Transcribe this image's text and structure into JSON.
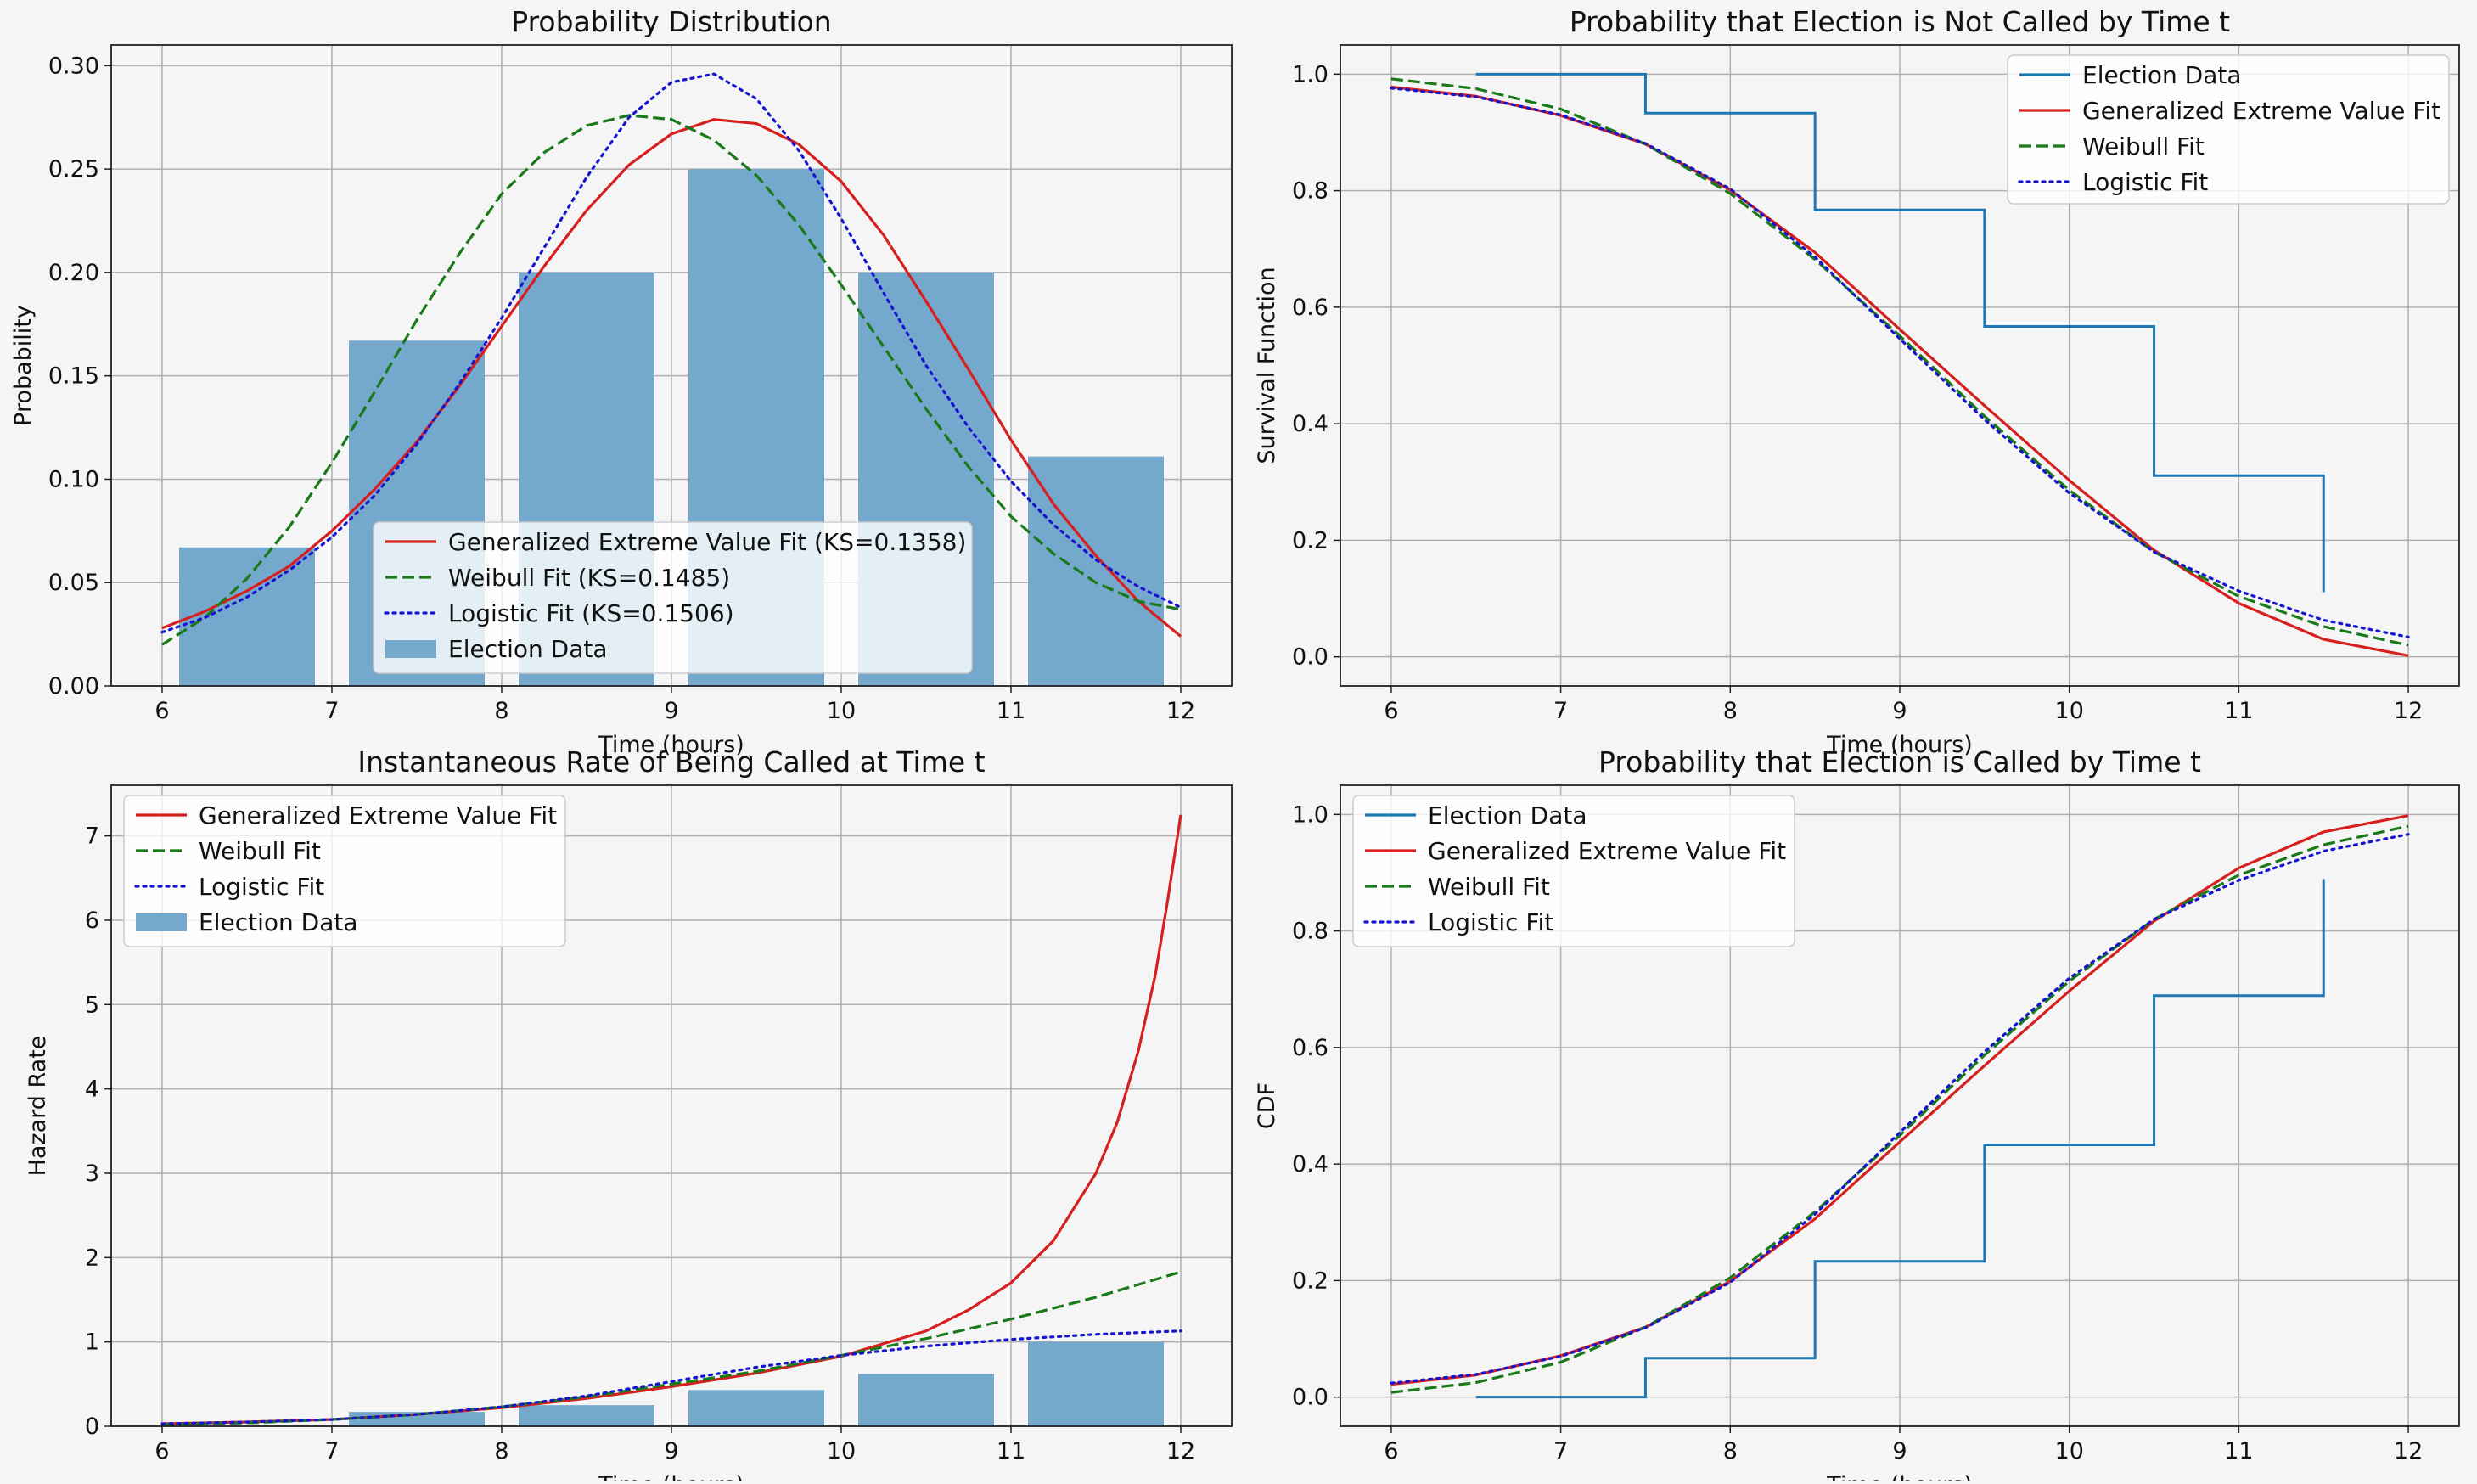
{
  "colors": {
    "figure_bg": "#f5f5f5",
    "axes_bg": "#f5f5f5",
    "grid": "#b0b0b0",
    "election_data": "#1f77b4",
    "election_bar": "#75a8cd",
    "gev": "#d62020",
    "weibull": "#1a7a1a",
    "logistic": "#1515d0"
  },
  "chart_data": [
    {
      "id": "pdf",
      "type": "bar",
      "title": "Probability Distribution",
      "xlabel": "Time (hours)",
      "ylabel": "Probability",
      "xlim": [
        5.7,
        12.3
      ],
      "ylim": [
        0,
        0.31
      ],
      "xticks": [
        6,
        7,
        8,
        9,
        10,
        11,
        12
      ],
      "yticks": [
        0.0,
        0.05,
        0.1,
        0.15,
        0.2,
        0.25,
        0.3
      ],
      "ytick_labels": [
        "0.00",
        "0.05",
        "0.10",
        "0.15",
        "0.20",
        "0.25",
        "0.30"
      ],
      "grid": true,
      "legend": "lower-center",
      "bars": {
        "name": "Election Data",
        "x": [
          6.5,
          7.5,
          8.5,
          9.5,
          10.5,
          11.5
        ],
        "width": 0.8,
        "values": [
          0.067,
          0.167,
          0.2,
          0.25,
          0.2,
          0.111
        ]
      },
      "series": [
        {
          "name": "Generalized Extreme Value Fit (KS=0.1358)",
          "style": "solid",
          "color_key": "gev",
          "x": [
            6,
            6.25,
            6.5,
            6.75,
            7,
            7.25,
            7.5,
            7.75,
            8,
            8.25,
            8.5,
            8.75,
            9,
            9.25,
            9.5,
            9.75,
            10,
            10.25,
            10.5,
            10.75,
            11,
            11.25,
            11.5,
            11.75,
            12
          ],
          "y": [
            0.028,
            0.036,
            0.046,
            0.058,
            0.075,
            0.095,
            0.118,
            0.145,
            0.174,
            0.203,
            0.23,
            0.252,
            0.267,
            0.274,
            0.272,
            0.262,
            0.244,
            0.218,
            0.186,
            0.153,
            0.119,
            0.088,
            0.063,
            0.041,
            0.024
          ]
        },
        {
          "name": "Weibull Fit (KS=0.1485)",
          "style": "dashed",
          "color_key": "weibull",
          "x": [
            6,
            6.25,
            6.5,
            6.75,
            7,
            7.25,
            7.5,
            7.75,
            8,
            8.25,
            8.5,
            8.75,
            9,
            9.25,
            9.5,
            9.75,
            10,
            10.25,
            10.5,
            10.75,
            11,
            11.25,
            11.5,
            11.75,
            12
          ],
          "y": [
            0.02,
            0.033,
            0.052,
            0.077,
            0.108,
            0.142,
            0.177,
            0.209,
            0.238,
            0.258,
            0.271,
            0.276,
            0.274,
            0.264,
            0.247,
            0.223,
            0.194,
            0.164,
            0.134,
            0.106,
            0.082,
            0.064,
            0.05,
            0.041,
            0.037
          ]
        },
        {
          "name": "Logistic Fit (KS=0.1506)",
          "style": "dotted",
          "color_key": "logistic",
          "x": [
            6,
            6.25,
            6.5,
            6.75,
            7,
            7.25,
            7.5,
            7.75,
            8,
            8.25,
            8.5,
            8.75,
            9,
            9.25,
            9.5,
            9.75,
            10,
            10.25,
            10.5,
            10.75,
            11,
            11.25,
            11.5,
            11.75,
            12
          ],
          "y": [
            0.026,
            0.033,
            0.043,
            0.056,
            0.072,
            0.092,
            0.117,
            0.146,
            0.178,
            0.212,
            0.246,
            0.275,
            0.292,
            0.296,
            0.284,
            0.259,
            0.226,
            0.19,
            0.155,
            0.125,
            0.099,
            0.078,
            0.061,
            0.048,
            0.038
          ]
        }
      ],
      "legend_order": [
        "series.0",
        "series.1",
        "series.2",
        "bars"
      ]
    },
    {
      "id": "survival",
      "type": "line",
      "title": "Probability that Election is Not Called by Time t",
      "xlabel": "Time (hours)",
      "ylabel": "Survival Function",
      "xlim": [
        5.7,
        12.3
      ],
      "ylim": [
        -0.05,
        1.05
      ],
      "xticks": [
        6,
        7,
        8,
        9,
        10,
        11,
        12
      ],
      "yticks": [
        0.0,
        0.2,
        0.4,
        0.6,
        0.8,
        1.0
      ],
      "ytick_labels": [
        "0.0",
        "0.2",
        "0.4",
        "0.6",
        "0.8",
        "1.0"
      ],
      "grid": true,
      "legend": "top-right",
      "step": {
        "name": "Election Data",
        "x": [
          6.5,
          7.5,
          7.5,
          8.5,
          8.5,
          9.5,
          9.5,
          10.5,
          10.5,
          11.5,
          11.5
        ],
        "y": [
          1.0,
          1.0,
          0.933,
          0.933,
          0.767,
          0.767,
          0.567,
          0.567,
          0.311,
          0.311,
          0.111
        ]
      },
      "series": [
        {
          "name": "Generalized Extreme Value Fit",
          "style": "solid",
          "color_key": "gev",
          "x": [
            6,
            6.5,
            7,
            7.5,
            8,
            8.5,
            9,
            9.5,
            10,
            10.5,
            11,
            11.5,
            12
          ],
          "y": [
            0.978,
            0.962,
            0.929,
            0.88,
            0.801,
            0.694,
            0.562,
            0.431,
            0.303,
            0.183,
            0.092,
            0.03,
            0.002
          ]
        },
        {
          "name": "Weibull Fit",
          "style": "dashed",
          "color_key": "weibull",
          "x": [
            6,
            6.5,
            7,
            7.5,
            8,
            8.5,
            9,
            9.5,
            10,
            10.5,
            11,
            11.5,
            12
          ],
          "y": [
            0.992,
            0.975,
            0.94,
            0.88,
            0.795,
            0.682,
            0.551,
            0.413,
            0.286,
            0.18,
            0.104,
            0.052,
            0.02
          ]
        },
        {
          "name": "Logistic Fit",
          "style": "dotted",
          "color_key": "logistic",
          "x": [
            6,
            6.5,
            7,
            7.5,
            8,
            8.5,
            9,
            9.5,
            10,
            10.5,
            11,
            11.5,
            12
          ],
          "y": [
            0.976,
            0.961,
            0.93,
            0.881,
            0.803,
            0.686,
            0.546,
            0.407,
            0.281,
            0.18,
            0.113,
            0.063,
            0.034
          ]
        }
      ],
      "legend_order": [
        "step",
        "series.0",
        "series.1",
        "series.2"
      ]
    },
    {
      "id": "hazard",
      "type": "bar",
      "title": "Instantaneous Rate of Being Called at Time t",
      "xlabel": "Time (hours)",
      "ylabel": "Hazard Rate",
      "xlim": [
        5.7,
        12.3
      ],
      "ylim": [
        0,
        7.6
      ],
      "xticks": [
        6,
        7,
        8,
        9,
        10,
        11,
        12
      ],
      "yticks": [
        0,
        1,
        2,
        3,
        4,
        5,
        6,
        7
      ],
      "ytick_labels": [
        "0",
        "1",
        "2",
        "3",
        "4",
        "5",
        "6",
        "7"
      ],
      "grid": true,
      "legend": "top-left",
      "bars": {
        "name": "Election Data",
        "x": [
          6.5,
          7.5,
          8.5,
          9.5,
          10.5,
          11.5
        ],
        "width": 0.8,
        "values": [
          0.0,
          0.17,
          0.25,
          0.43,
          0.62,
          1.0
        ]
      },
      "series": [
        {
          "name": "Generalized Extreme Value Fit",
          "style": "solid",
          "color_key": "gev",
          "x": [
            6,
            6.5,
            7,
            7.5,
            8,
            8.5,
            9,
            9.5,
            10,
            10.5,
            10.75,
            11,
            11.25,
            11.5,
            11.625,
            11.75,
            11.85,
            11.92,
            12
          ],
          "y": [
            0.03,
            0.05,
            0.08,
            0.14,
            0.22,
            0.33,
            0.47,
            0.63,
            0.83,
            1.13,
            1.38,
            1.7,
            2.2,
            3.0,
            3.6,
            4.45,
            5.35,
            6.2,
            7.25
          ]
        },
        {
          "name": "Weibull Fit",
          "style": "dashed",
          "color_key": "weibull",
          "x": [
            6,
            6.5,
            7,
            7.5,
            8,
            8.5,
            9,
            9.5,
            10,
            10.5,
            11,
            11.5,
            12
          ],
          "y": [
            0.02,
            0.04,
            0.08,
            0.14,
            0.23,
            0.35,
            0.5,
            0.65,
            0.84,
            1.04,
            1.27,
            1.53,
            1.83
          ]
        },
        {
          "name": "Logistic Fit",
          "style": "dotted",
          "color_key": "logistic",
          "x": [
            6,
            6.5,
            7,
            7.5,
            8,
            8.5,
            9,
            9.5,
            10,
            10.5,
            11,
            11.5,
            12
          ],
          "y": [
            0.03,
            0.05,
            0.08,
            0.14,
            0.23,
            0.36,
            0.53,
            0.7,
            0.84,
            0.95,
            1.03,
            1.09,
            1.13
          ]
        }
      ],
      "legend_order": [
        "series.0",
        "series.1",
        "series.2",
        "bars"
      ]
    },
    {
      "id": "cdf",
      "type": "line",
      "title": "Probability that Election is Called by Time t",
      "xlabel": "Time (hours)",
      "ylabel": "CDF",
      "xlim": [
        5.7,
        12.3
      ],
      "ylim": [
        -0.05,
        1.05
      ],
      "xticks": [
        6,
        7,
        8,
        9,
        10,
        11,
        12
      ],
      "yticks": [
        0.0,
        0.2,
        0.4,
        0.6,
        0.8,
        1.0
      ],
      "ytick_labels": [
        "0.0",
        "0.2",
        "0.4",
        "0.6",
        "0.8",
        "1.0"
      ],
      "grid": true,
      "legend": "top-left",
      "step": {
        "name": "Election Data",
        "x": [
          6.5,
          7.5,
          7.5,
          8.5,
          8.5,
          9.5,
          9.5,
          10.5,
          10.5,
          11.5,
          11.5
        ],
        "y": [
          0.0,
          0.0,
          0.067,
          0.067,
          0.233,
          0.233,
          0.433,
          0.433,
          0.689,
          0.689,
          0.889
        ]
      },
      "series": [
        {
          "name": "Generalized Extreme Value Fit",
          "style": "solid",
          "color_key": "gev",
          "x": [
            6,
            6.5,
            7,
            7.5,
            8,
            8.5,
            9,
            9.5,
            10,
            10.5,
            11,
            11.5,
            12
          ],
          "y": [
            0.022,
            0.038,
            0.071,
            0.12,
            0.199,
            0.306,
            0.438,
            0.569,
            0.697,
            0.817,
            0.908,
            0.97,
            0.998
          ]
        },
        {
          "name": "Weibull Fit",
          "style": "dashed",
          "color_key": "weibull",
          "x": [
            6,
            6.5,
            7,
            7.5,
            8,
            8.5,
            9,
            9.5,
            10,
            10.5,
            11,
            11.5,
            12
          ],
          "y": [
            0.008,
            0.025,
            0.06,
            0.12,
            0.205,
            0.318,
            0.449,
            0.587,
            0.714,
            0.82,
            0.896,
            0.948,
            0.98
          ]
        },
        {
          "name": "Logistic Fit",
          "style": "dotted",
          "color_key": "logistic",
          "x": [
            6,
            6.5,
            7,
            7.5,
            8,
            8.5,
            9,
            9.5,
            10,
            10.5,
            11,
            11.5,
            12
          ],
          "y": [
            0.024,
            0.039,
            0.07,
            0.119,
            0.197,
            0.314,
            0.454,
            0.593,
            0.719,
            0.82,
            0.887,
            0.937,
            0.966
          ]
        }
      ],
      "legend_order": [
        "step",
        "series.0",
        "series.1",
        "series.2"
      ]
    }
  ]
}
